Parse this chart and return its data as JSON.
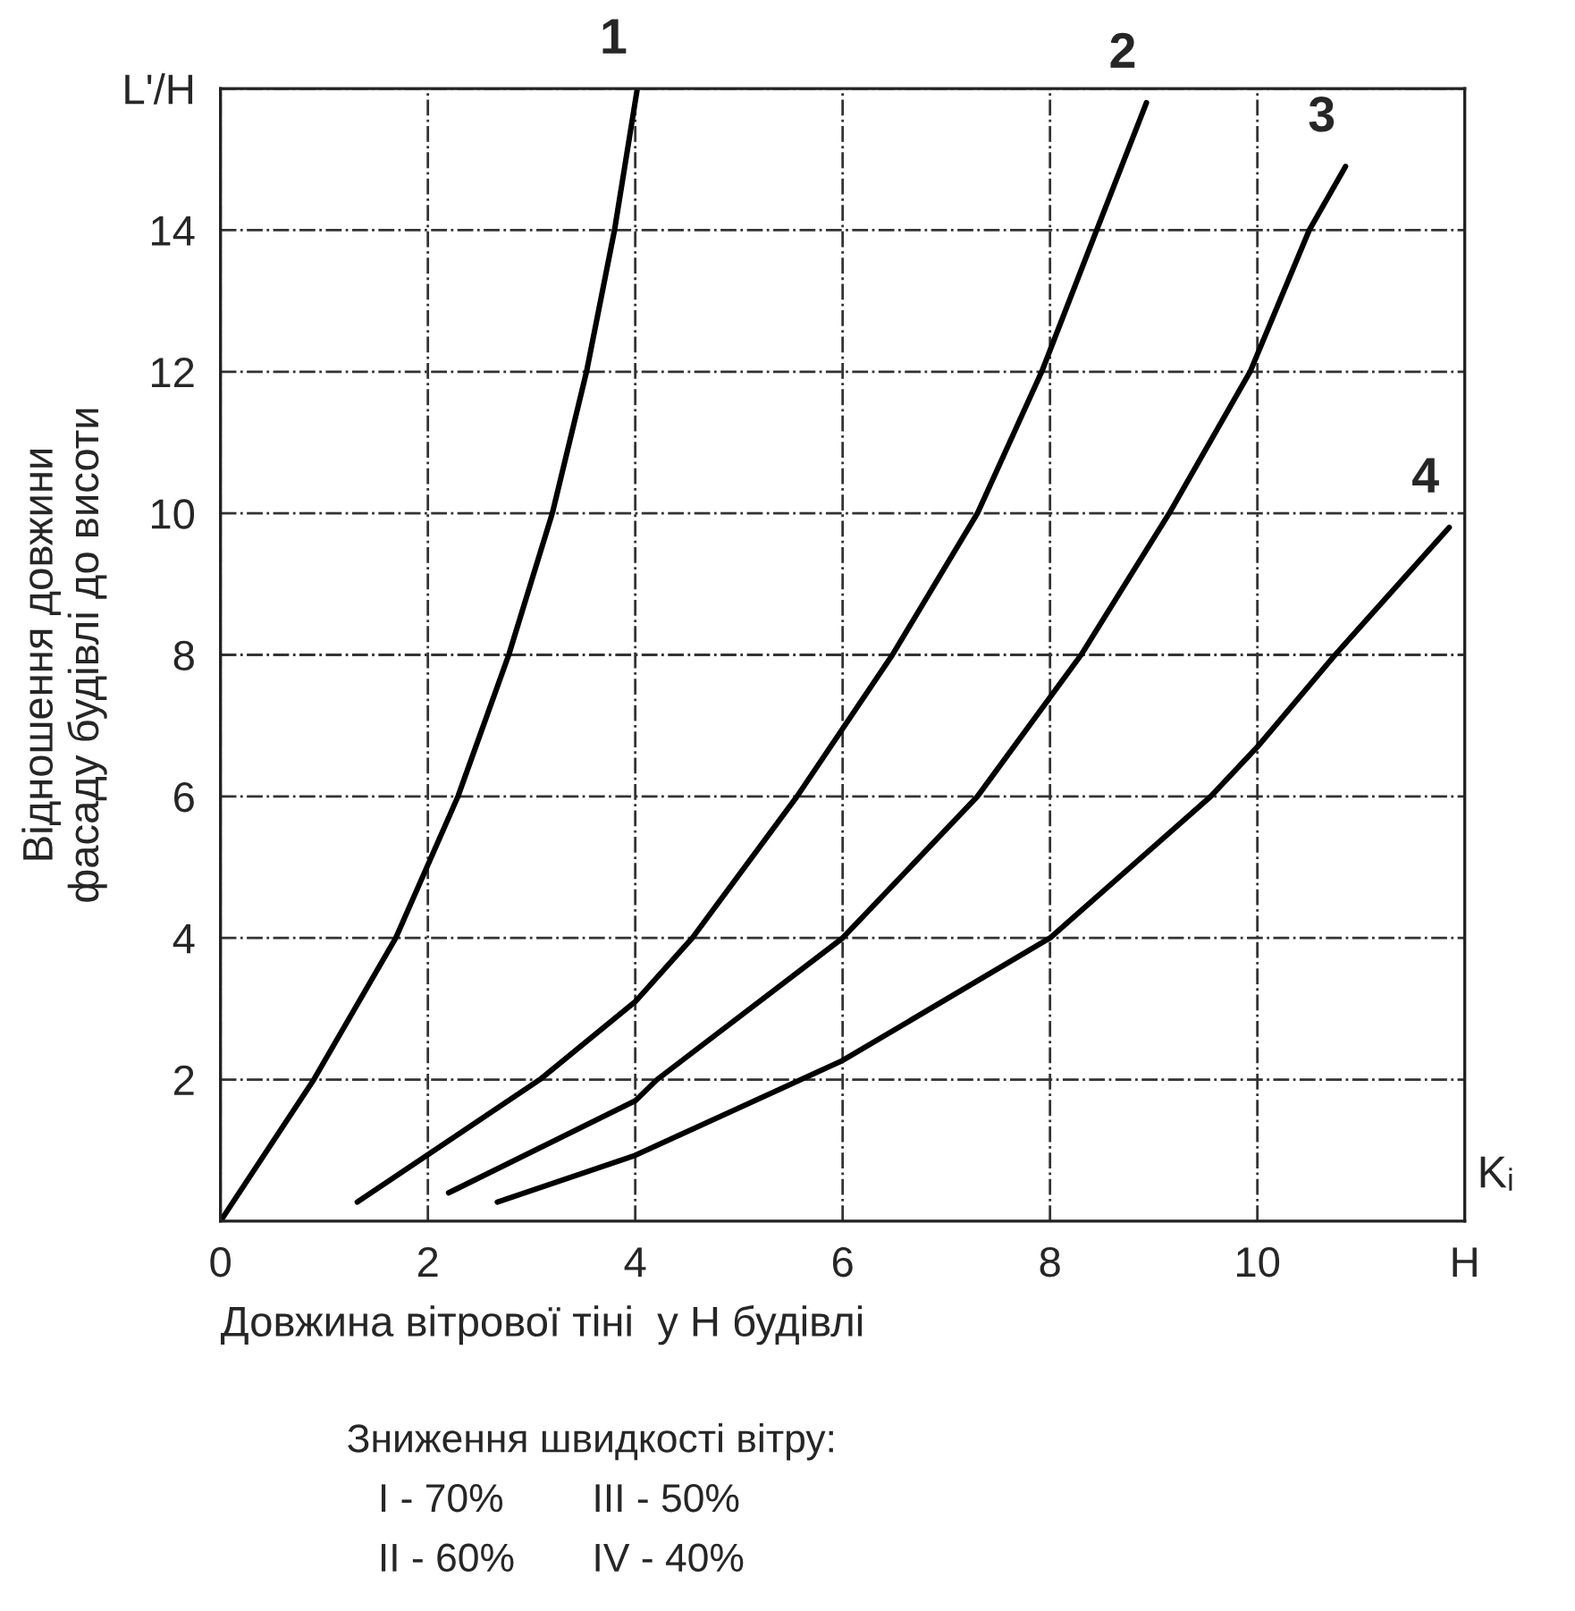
{
  "chart_data": {
    "type": "line",
    "xlabel": "Довжина вітрової тіні  у Н будівлі",
    "ylabel": "Відношення довжини\nфасаду будівлі до висоти",
    "xlim": [
      0,
      12
    ],
    "ylim": [
      0,
      16
    ],
    "xticks": [
      0,
      2,
      4,
      6,
      8,
      10,
      {
        "value": 12,
        "label": "H"
      }
    ],
    "yticks": [
      2,
      4,
      6,
      8,
      10,
      12,
      14,
      {
        "value": 16,
        "label": "L'/H"
      }
    ],
    "grid": true,
    "legend": false,
    "marker": "none",
    "line_style": "solid",
    "annotations": [
      "Kᵢ",
      "Зниження швидкості вітру:",
      "I - 70%        III - 50%",
      "II - 60%       IV - 40%"
    ],
    "series": [
      {
        "name": "1",
        "color": "#000000",
        "x": [
          0,
          0.9,
          1.69,
          2.29,
          2.78,
          3.2,
          3.53,
          3.8,
          4.02
        ],
        "values": [
          0,
          2,
          4,
          6,
          8,
          10,
          12,
          14,
          16
        ]
      },
      {
        "name": "2",
        "color": "#000000",
        "x": [
          1.32,
          3.08,
          4.0,
          4.55,
          5.56,
          6.48,
          7.3,
          7.92,
          8.45,
          8.93
        ],
        "values": [
          0.27,
          2,
          3.1,
          4,
          6,
          8,
          10,
          12,
          14,
          15.8
        ]
      },
      {
        "name": "3",
        "color": "#000000",
        "x": [
          2.2,
          4.0,
          4.21,
          6.0,
          7.3,
          8.3,
          9.15,
          9.93,
          10.5,
          10.85
        ],
        "values": [
          0.4,
          1.7,
          2,
          4,
          6,
          8,
          10,
          12,
          14,
          14.9
        ]
      },
      {
        "name": "4",
        "color": "#000000",
        "x": [
          2.67,
          4.0,
          6.0,
          8.0,
          9.55,
          10.0,
          10.75,
          11.85
        ],
        "values": [
          0.27,
          0.93,
          2.27,
          4,
          6,
          6.7,
          8,
          9.8
        ]
      }
    ]
  }
}
